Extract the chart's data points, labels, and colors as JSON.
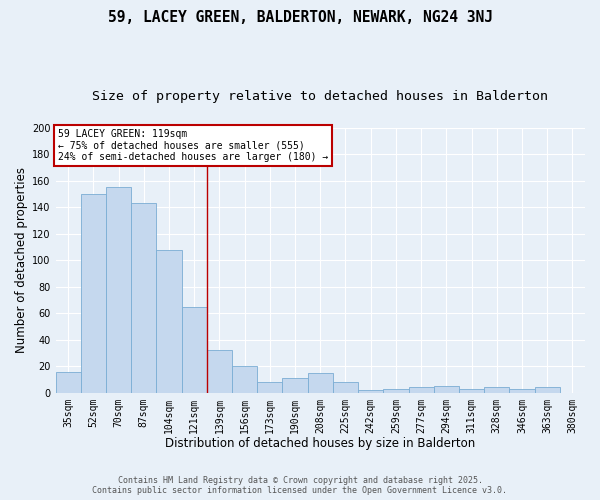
{
  "title": "59, LACEY GREEN, BALDERTON, NEWARK, NG24 3NJ",
  "subtitle": "Size of property relative to detached houses in Balderton",
  "xlabel": "Distribution of detached houses by size in Balderton",
  "ylabel": "Number of detached properties",
  "categories": [
    "35sqm",
    "52sqm",
    "70sqm",
    "87sqm",
    "104sqm",
    "121sqm",
    "139sqm",
    "156sqm",
    "173sqm",
    "190sqm",
    "208sqm",
    "225sqm",
    "242sqm",
    "259sqm",
    "277sqm",
    "294sqm",
    "311sqm",
    "328sqm",
    "346sqm",
    "363sqm",
    "380sqm"
  ],
  "values": [
    16,
    150,
    155,
    143,
    108,
    65,
    32,
    20,
    8,
    11,
    15,
    8,
    2,
    3,
    4,
    5,
    3,
    4,
    3,
    4,
    0
  ],
  "bar_color": "#c5d8ee",
  "bar_edge_color": "#7aadd4",
  "background_color": "#e8f0f8",
  "plot_bg_color": "#e8f0f8",
  "vline_index": 5,
  "vline_color": "#bb0000",
  "annotation_title": "59 LACEY GREEN: 119sqm",
  "annotation_line1": "← 75% of detached houses are smaller (555)",
  "annotation_line2": "24% of semi-detached houses are larger (180) →",
  "annotation_box_color": "#ffffff",
  "annotation_border_color": "#bb0000",
  "footer_line1": "Contains HM Land Registry data © Crown copyright and database right 2025.",
  "footer_line2": "Contains public sector information licensed under the Open Government Licence v3.0.",
  "ylim": [
    0,
    200
  ],
  "yticks": [
    0,
    20,
    40,
    60,
    80,
    100,
    120,
    140,
    160,
    180,
    200
  ],
  "title_fontsize": 10.5,
  "subtitle_fontsize": 9.5,
  "axis_label_fontsize": 8.5,
  "tick_fontsize": 7,
  "annotation_fontsize": 7,
  "footer_fontsize": 6
}
